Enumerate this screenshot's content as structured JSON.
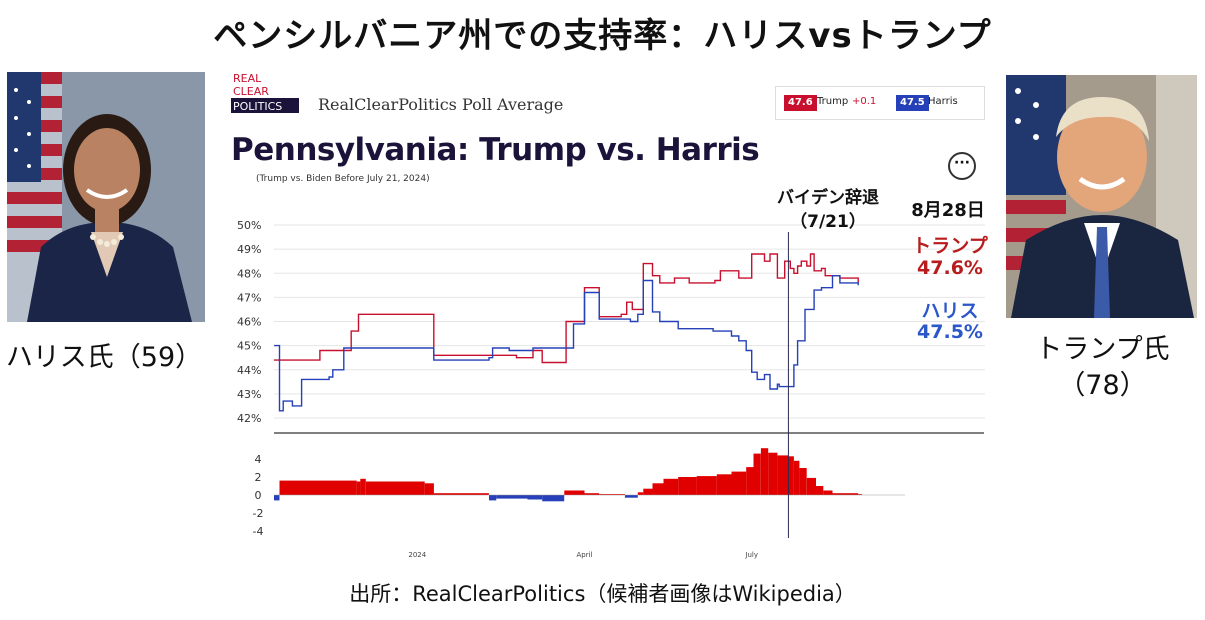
{
  "page": {
    "title": "ペンシルバニア州での支持率：ハリスvsトランプ",
    "source": "出所：RealClearPolitics（候補者画像はWikipedia）"
  },
  "photos": {
    "harris": {
      "caption": "ハリス氏（59）"
    },
    "trump": {
      "caption_line1": "トランプ氏",
      "caption_line2": "（78）"
    }
  },
  "rcp": {
    "logo_lines": [
      "REAL",
      "CLEAR",
      "POLITICS"
    ],
    "header": "RealClearPolitics Poll Average",
    "legend": {
      "trump_value": "47.6",
      "trump_label": "Trump",
      "trump_change": "+0.1",
      "harris_value": "47.5",
      "harris_label": "Harris"
    },
    "more_icon": "···"
  },
  "annotations": {
    "biden_line1": "バイデン辞退",
    "biden_line2": "（7/21）",
    "date": "8月28日",
    "trump_name": "トランプ",
    "trump_value": "47.6%",
    "harris_name": "ハリス",
    "harris_value": "47.5%"
  },
  "colors": {
    "trump": "#c8102e",
    "harris": "#2540b8",
    "title_navy": "#1b1339",
    "annotation_red": "#b91c1c",
    "annotation_blue": "#2b58c9"
  },
  "chart_data": {
    "type": "line",
    "title": "Pennsylvania: Trump vs. Harris",
    "subtitle": "(Trump vs. Biden Before July 21, 2024)",
    "x_ticks": [
      "2024",
      "April",
      "July"
    ],
    "ylim": [
      42,
      50
    ],
    "y_ticks": [
      "50%",
      "49%",
      "48%",
      "47%",
      "46%",
      "45%",
      "44%",
      "43%",
      "42%"
    ],
    "grid": true,
    "legend_placement": "top-right",
    "event_marker": "July 21",
    "x_range": [
      "2023-10-15",
      "2024-09-01"
    ],
    "series": [
      {
        "name": "Trump",
        "color": "#c8102e",
        "points": [
          [
            "2023-10-15",
            44.4
          ],
          [
            "2023-11-06",
            44.4
          ],
          [
            "2023-11-09",
            44.8
          ],
          [
            "2023-11-22",
            44.8
          ],
          [
            "2023-11-26",
            45.6
          ],
          [
            "2023-11-30",
            46.3
          ],
          [
            "2024-01-05",
            46.3
          ],
          [
            "2024-01-10",
            44.6
          ],
          [
            "2024-02-09",
            44.6
          ],
          [
            "2024-02-11",
            44.6
          ],
          [
            "2024-02-24",
            44.5
          ],
          [
            "2024-03-04",
            44.8
          ],
          [
            "2024-03-09",
            44.3
          ],
          [
            "2024-03-20",
            44.3
          ],
          [
            "2024-03-22",
            46.0
          ],
          [
            "2024-03-29",
            46.0
          ],
          [
            "2024-04-01",
            47.4
          ],
          [
            "2024-04-05",
            47.4
          ],
          [
            "2024-04-09",
            46.2
          ],
          [
            "2024-04-21",
            46.3
          ],
          [
            "2024-04-24",
            46.8
          ],
          [
            "2024-04-27",
            46.5
          ],
          [
            "2024-05-03",
            48.4
          ],
          [
            "2024-05-08",
            47.9
          ],
          [
            "2024-05-12",
            47.6
          ],
          [
            "2024-05-20",
            47.8
          ],
          [
            "2024-05-28",
            47.6
          ],
          [
            "2024-06-11",
            47.7
          ],
          [
            "2024-06-14",
            48.1
          ],
          [
            "2024-06-24",
            47.8
          ],
          [
            "2024-07-01",
            48.8
          ],
          [
            "2024-07-05",
            48.8
          ],
          [
            "2024-07-08",
            48.5
          ],
          [
            "2024-07-11",
            48.8
          ],
          [
            "2024-07-15",
            47.8
          ],
          [
            "2024-07-19",
            48.5
          ],
          [
            "2024-07-22",
            48.2
          ],
          [
            "2024-07-24",
            48.0
          ],
          [
            "2024-07-26",
            48.3
          ],
          [
            "2024-07-28",
            48.5
          ],
          [
            "2024-07-31",
            48.3
          ],
          [
            "2024-08-02",
            48.8
          ],
          [
            "2024-08-04",
            48.1
          ],
          [
            "2024-08-08",
            48.2
          ],
          [
            "2024-08-10",
            47.9
          ],
          [
            "2024-08-18",
            47.8
          ],
          [
            "2024-08-28",
            47.6
          ]
        ]
      },
      {
        "name": "Harris",
        "color": "#2540b8",
        "points": [
          [
            "2023-10-15",
            45.0
          ],
          [
            "2023-10-18",
            42.3
          ],
          [
            "2023-10-20",
            42.7
          ],
          [
            "2023-10-25",
            42.5
          ],
          [
            "2023-10-30",
            43.6
          ],
          [
            "2023-11-14",
            43.7
          ],
          [
            "2023-11-16",
            44.0
          ],
          [
            "2023-11-19",
            44.0
          ],
          [
            "2023-11-22",
            44.9
          ],
          [
            "2024-01-05",
            44.9
          ],
          [
            "2024-01-10",
            44.4
          ],
          [
            "2024-02-09",
            44.5
          ],
          [
            "2024-02-11",
            44.9
          ],
          [
            "2024-02-17",
            44.9
          ],
          [
            "2024-02-20",
            44.8
          ],
          [
            "2024-03-04",
            44.9
          ],
          [
            "2024-03-21",
            44.9
          ],
          [
            "2024-03-26",
            45.9
          ],
          [
            "2024-03-29",
            45.9
          ],
          [
            "2024-04-01",
            47.2
          ],
          [
            "2024-04-05",
            47.2
          ],
          [
            "2024-04-09",
            46.1
          ],
          [
            "2024-04-26",
            46.0
          ],
          [
            "2024-04-30",
            46.3
          ],
          [
            "2024-05-03",
            47.7
          ],
          [
            "2024-05-08",
            46.4
          ],
          [
            "2024-05-12",
            46.0
          ],
          [
            "2024-05-22",
            45.7
          ],
          [
            "2024-06-05",
            45.7
          ],
          [
            "2024-06-10",
            45.6
          ],
          [
            "2024-06-16",
            45.6
          ],
          [
            "2024-06-20",
            45.4
          ],
          [
            "2024-06-24",
            45.2
          ],
          [
            "2024-06-28",
            44.8
          ],
          [
            "2024-07-01",
            43.9
          ],
          [
            "2024-07-04",
            43.6
          ],
          [
            "2024-07-08",
            43.8
          ],
          [
            "2024-07-11",
            43.2
          ],
          [
            "2024-07-15",
            43.4
          ],
          [
            "2024-07-16",
            43.3
          ],
          [
            "2024-07-24",
            44.2
          ],
          [
            "2024-07-26",
            45.2
          ],
          [
            "2024-07-30",
            46.5
          ],
          [
            "2024-08-04",
            47.3
          ],
          [
            "2024-08-08",
            47.4
          ],
          [
            "2024-08-14",
            47.9
          ],
          [
            "2024-08-18",
            47.6
          ],
          [
            "2024-08-28",
            47.5
          ]
        ]
      }
    ],
    "spread": {
      "ylim": [
        -4,
        6
      ],
      "y_ticks": [
        "4",
        "2",
        "0",
        "-2",
        "-4"
      ],
      "positive_color": "#e00000",
      "negative_color": "#2540b8",
      "points": [
        [
          "2023-10-15",
          -0.6
        ],
        [
          "2023-10-18",
          1.6
        ],
        [
          "2023-11-29",
          1.5
        ],
        [
          "2023-12-01",
          1.8
        ],
        [
          "2023-12-04",
          1.5
        ],
        [
          "2024-01-05",
          1.3
        ],
        [
          "2024-01-10",
          0.2
        ],
        [
          "2024-02-09",
          -0.6
        ],
        [
          "2024-02-13",
          -0.4
        ],
        [
          "2024-03-01",
          -0.5
        ],
        [
          "2024-03-09",
          -0.7
        ],
        [
          "2024-03-21",
          0.5
        ],
        [
          "2024-04-01",
          0.2
        ],
        [
          "2024-04-09",
          0.1
        ],
        [
          "2024-04-23",
          -0.3
        ],
        [
          "2024-04-30",
          0.3
        ],
        [
          "2024-05-03",
          0.7
        ],
        [
          "2024-05-08",
          1.3
        ],
        [
          "2024-05-14",
          1.8
        ],
        [
          "2024-05-22",
          2.0
        ],
        [
          "2024-06-01",
          2.1
        ],
        [
          "2024-06-12",
          2.3
        ],
        [
          "2024-06-20",
          2.6
        ],
        [
          "2024-06-28",
          3.1
        ],
        [
          "2024-07-02",
          4.6
        ],
        [
          "2024-07-06",
          5.2
        ],
        [
          "2024-07-10",
          4.7
        ],
        [
          "2024-07-15",
          4.4
        ],
        [
          "2024-07-21",
          4.3
        ],
        [
          "2024-07-24",
          3.8
        ],
        [
          "2024-07-27",
          3.0
        ],
        [
          "2024-07-31",
          1.9
        ],
        [
          "2024-08-05",
          1.0
        ],
        [
          "2024-08-09",
          0.5
        ],
        [
          "2024-08-14",
          0.2
        ],
        [
          "2024-08-28",
          0.1
        ]
      ]
    }
  }
}
